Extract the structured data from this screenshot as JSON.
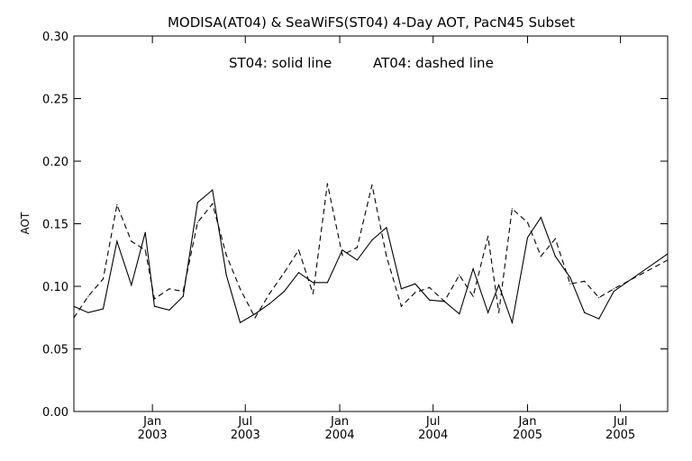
{
  "chart_data": {
    "type": "line",
    "title": "MODISA(AT04) & SeaWiFS(ST04) 4-Day AOT, PacN45 Subset",
    "annotation": {
      "solid_text": "ST04: solid line",
      "dashed_text": "AT04: dashed line"
    },
    "ylabel": "AOT",
    "xlabel": "",
    "ylim": [
      0.0,
      0.3
    ],
    "xlim": [
      "2002-08-01",
      "2005-10-01"
    ],
    "yticks": [
      "0.00",
      "0.05",
      "0.10",
      "0.15",
      "0.20",
      "0.25",
      "0.30"
    ],
    "xticks": [
      {
        "date": "2003-01-01",
        "month": "Jan",
        "year": "2003"
      },
      {
        "date": "2003-07-01",
        "month": "Jul",
        "year": "2003"
      },
      {
        "date": "2004-01-01",
        "month": "Jan",
        "year": "2004"
      },
      {
        "date": "2004-07-01",
        "month": "Jul",
        "year": "2004"
      },
      {
        "date": "2005-01-01",
        "month": "Jan",
        "year": "2005"
      },
      {
        "date": "2005-07-01",
        "month": "Jul",
        "year": "2005"
      }
    ],
    "grid": false,
    "series": [
      {
        "name": "ST04",
        "style": "solid",
        "color": "#000000",
        "points": [
          [
            "2002-08-01",
            0.084
          ],
          [
            "2002-08-29",
            0.079
          ],
          [
            "2002-09-27",
            0.082
          ],
          [
            "2002-10-24",
            0.136
          ],
          [
            "2002-11-21",
            0.101
          ],
          [
            "2002-12-18",
            0.143
          ],
          [
            "2003-01-05",
            0.084
          ],
          [
            "2003-02-03",
            0.081
          ],
          [
            "2003-03-02",
            0.092
          ],
          [
            "2003-03-30",
            0.167
          ],
          [
            "2003-04-28",
            0.177
          ],
          [
            "2003-05-25",
            0.109
          ],
          [
            "2003-06-21",
            0.071
          ],
          [
            "2003-07-20",
            0.078
          ],
          [
            "2003-08-17",
            0.086
          ],
          [
            "2003-09-15",
            0.096
          ],
          [
            "2003-10-13",
            0.111
          ],
          [
            "2003-11-10",
            0.103
          ],
          [
            "2003-12-08",
            0.103
          ],
          [
            "2004-01-06",
            0.129
          ],
          [
            "2004-02-04",
            0.121
          ],
          [
            "2004-03-04",
            0.137
          ],
          [
            "2004-04-01",
            0.147
          ],
          [
            "2004-04-30",
            0.098
          ],
          [
            "2004-05-27",
            0.102
          ],
          [
            "2004-06-24",
            0.089
          ],
          [
            "2004-07-23",
            0.088
          ],
          [
            "2004-08-21",
            0.078
          ],
          [
            "2004-09-17",
            0.114
          ],
          [
            "2004-10-16",
            0.079
          ],
          [
            "2004-11-06",
            0.101
          ],
          [
            "2004-12-02",
            0.071
          ],
          [
            "2005-01-01",
            0.139
          ],
          [
            "2005-01-27",
            0.155
          ],
          [
            "2005-02-24",
            0.124
          ],
          [
            "2005-03-25",
            0.107
          ],
          [
            "2005-04-22",
            0.079
          ],
          [
            "2005-05-20",
            0.074
          ],
          [
            "2005-06-18",
            0.096
          ],
          [
            "2005-10-01",
            0.126
          ]
        ]
      },
      {
        "name": "AT04",
        "style": "dashed",
        "color": "#000000",
        "points": [
          [
            "2002-08-01",
            0.075
          ],
          [
            "2002-08-29",
            0.092
          ],
          [
            "2002-09-27",
            0.106
          ],
          [
            "2002-10-24",
            0.165
          ],
          [
            "2002-11-21",
            0.136
          ],
          [
            "2002-12-18",
            0.129
          ],
          [
            "2003-01-05",
            0.09
          ],
          [
            "2003-02-03",
            0.098
          ],
          [
            "2003-03-02",
            0.096
          ],
          [
            "2003-03-30",
            0.151
          ],
          [
            "2003-04-28",
            0.166
          ],
          [
            "2003-05-25",
            0.125
          ],
          [
            "2003-06-21",
            0.098
          ],
          [
            "2003-07-20",
            0.075
          ],
          [
            "2003-08-17",
            0.094
          ],
          [
            "2003-09-15",
            0.111
          ],
          [
            "2003-10-13",
            0.129
          ],
          [
            "2003-11-10",
            0.094
          ],
          [
            "2003-12-08",
            0.182
          ],
          [
            "2004-01-06",
            0.125
          ],
          [
            "2004-02-04",
            0.131
          ],
          [
            "2004-03-04",
            0.181
          ],
          [
            "2004-04-01",
            0.124
          ],
          [
            "2004-04-30",
            0.084
          ],
          [
            "2004-05-27",
            0.095
          ],
          [
            "2004-06-24",
            0.099
          ],
          [
            "2004-07-23",
            0.088
          ],
          [
            "2004-08-21",
            0.109
          ],
          [
            "2004-09-17",
            0.092
          ],
          [
            "2004-10-16",
            0.14
          ],
          [
            "2004-11-06",
            0.079
          ],
          [
            "2004-12-02",
            0.162
          ],
          [
            "2005-01-01",
            0.151
          ],
          [
            "2005-01-27",
            0.124
          ],
          [
            "2005-02-24",
            0.138
          ],
          [
            "2005-03-25",
            0.102
          ],
          [
            "2005-04-22",
            0.104
          ],
          [
            "2005-05-20",
            0.091
          ],
          [
            "2005-06-18",
            0.098
          ],
          [
            "2005-10-01",
            0.121
          ]
        ]
      }
    ]
  }
}
